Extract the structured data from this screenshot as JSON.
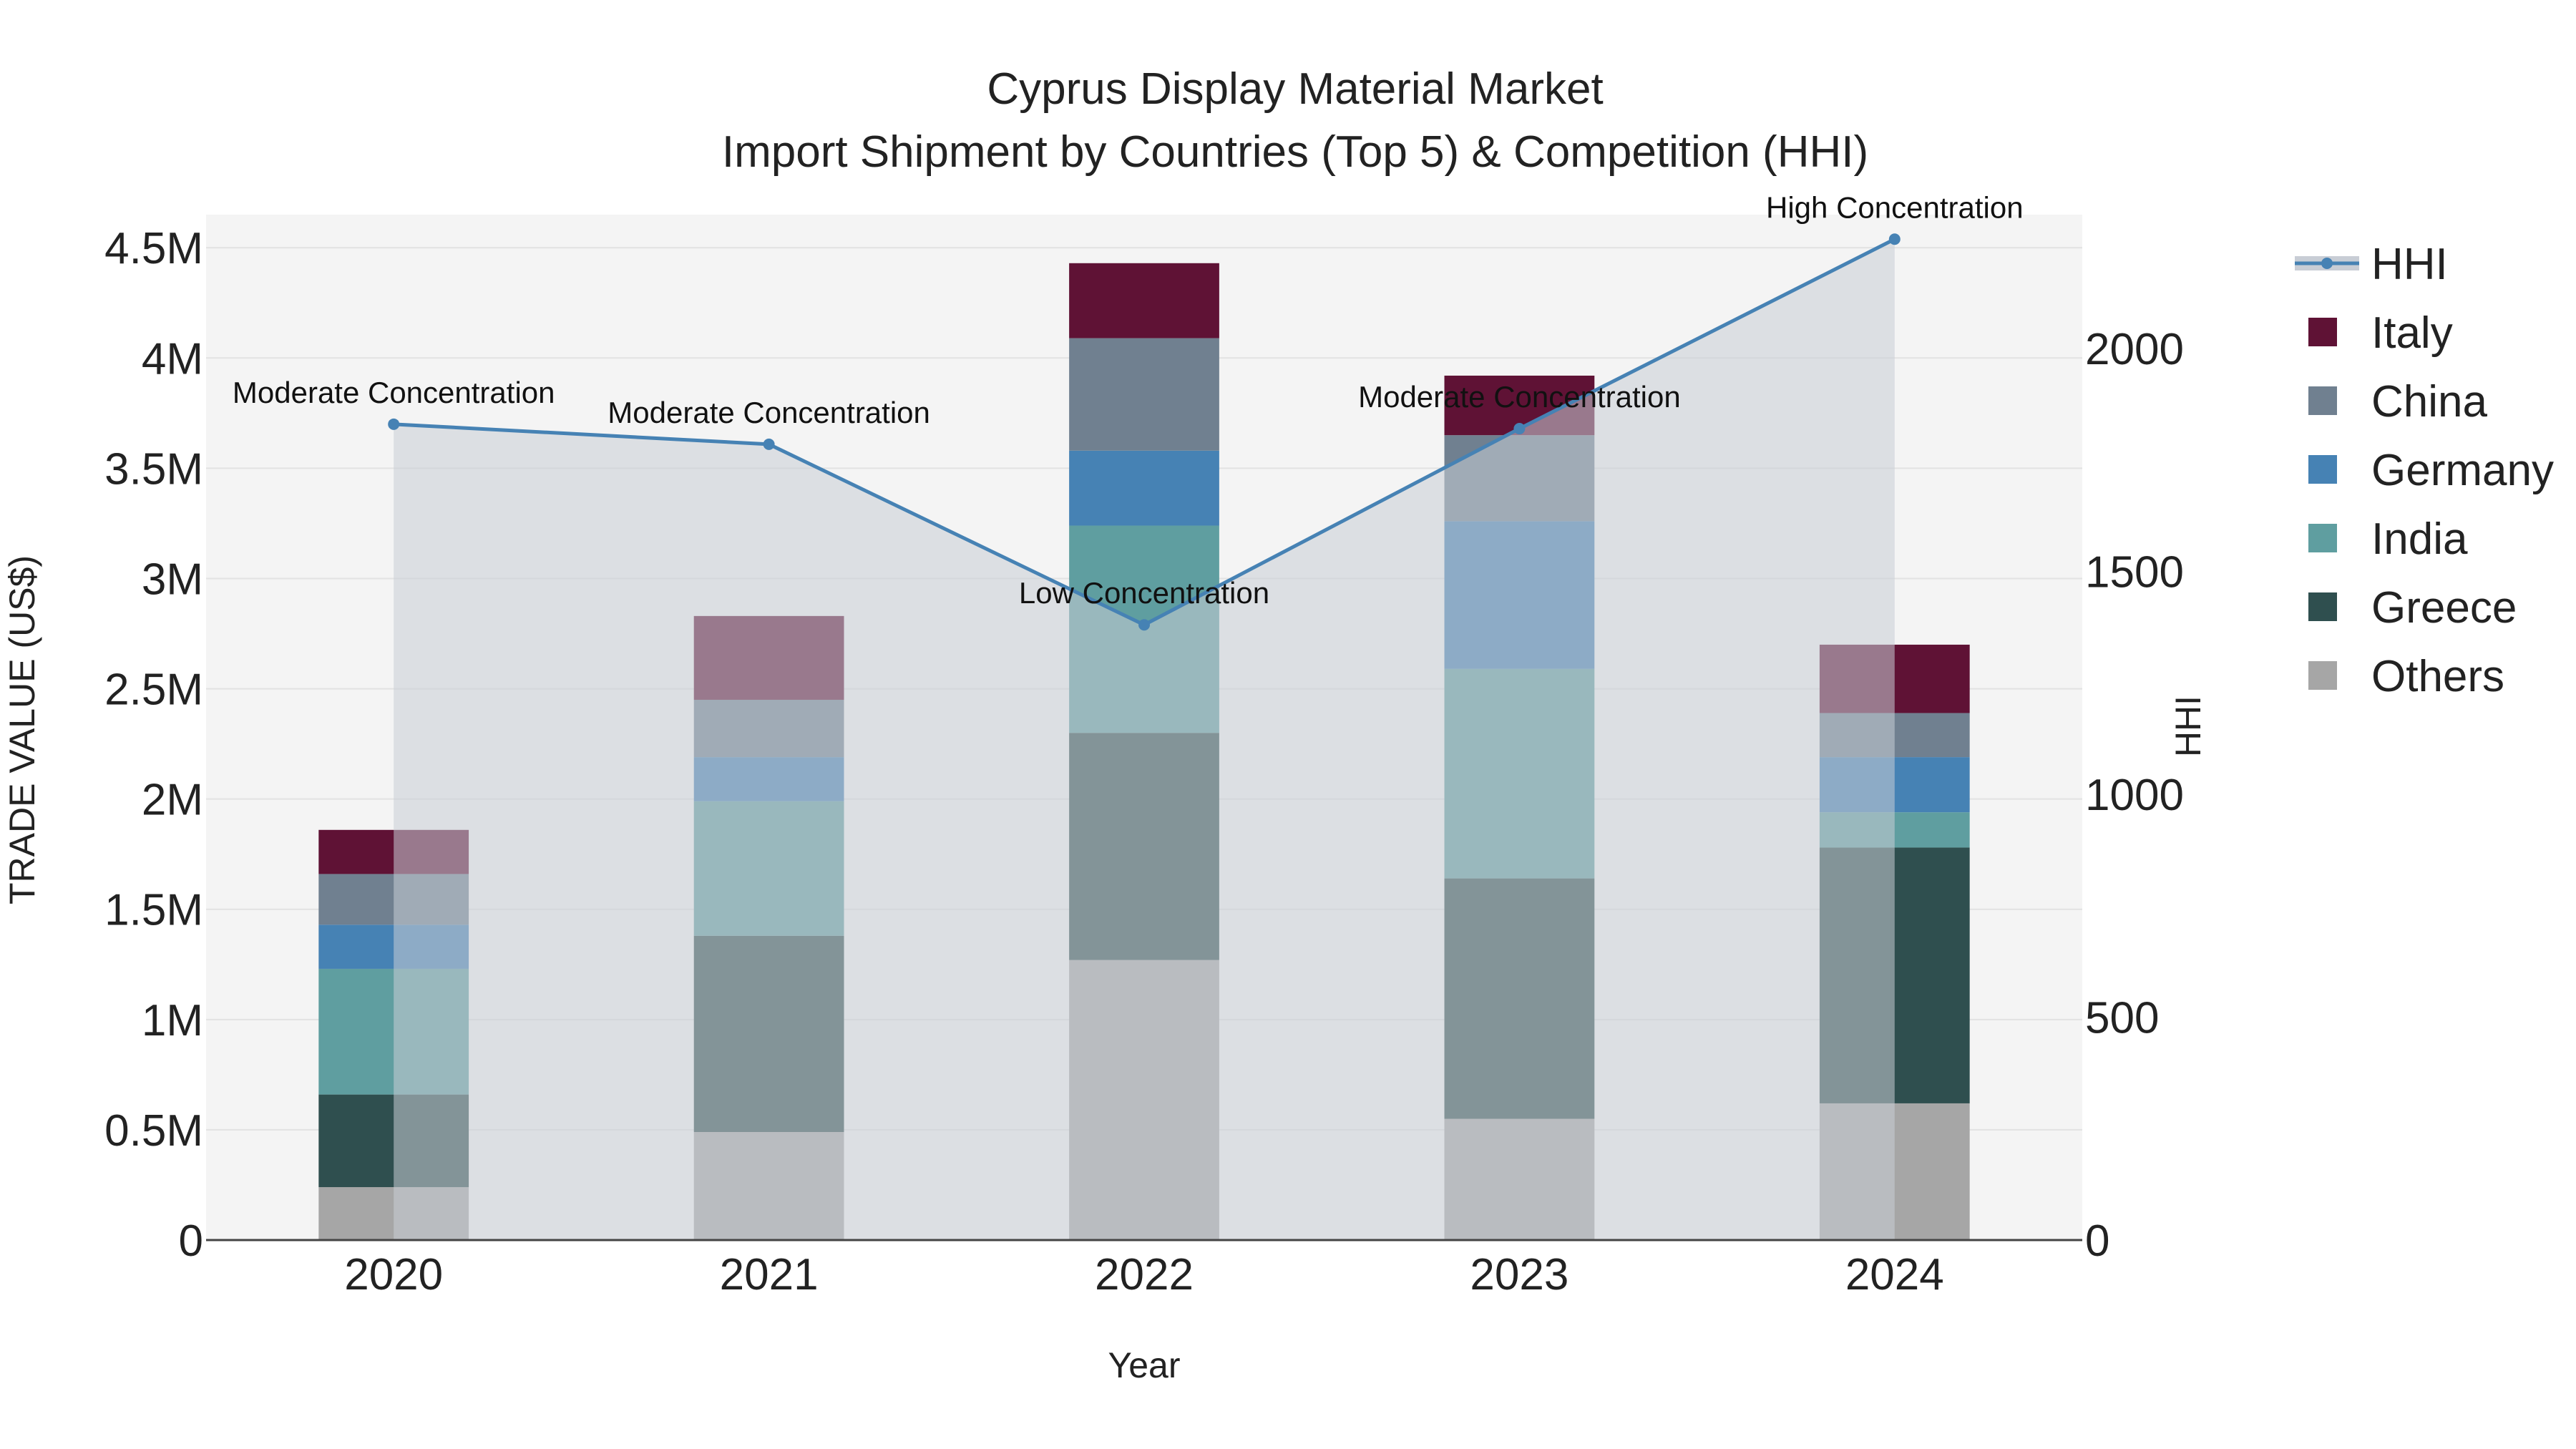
{
  "chart_data": {
    "type": "bar",
    "title": "Cyprus Display Material Market",
    "subtitle": "Import Shipment by Countries (Top 5) & Competition (HHI)",
    "xlabel": "Year",
    "ylabel": "TRADE VALUE (US$)",
    "y2label": "HHI",
    "categories": [
      "2020",
      "2021",
      "2022",
      "2023",
      "2024"
    ],
    "ylim": [
      0,
      4650000
    ],
    "y2lim": [
      0,
      2300
    ],
    "yticks": [
      {
        "value": 0,
        "label": "0"
      },
      {
        "value": 500000,
        "label": "0.5M"
      },
      {
        "value": 1000000,
        "label": "1M"
      },
      {
        "value": 1500000,
        "label": "1.5M"
      },
      {
        "value": 2000000,
        "label": "2M"
      },
      {
        "value": 2500000,
        "label": "2.5M"
      },
      {
        "value": 3000000,
        "label": "3M"
      },
      {
        "value": 3500000,
        "label": "3.5M"
      },
      {
        "value": 4000000,
        "label": "4M"
      },
      {
        "value": 4500000,
        "label": "4.5M"
      }
    ],
    "y2ticks": [
      {
        "value": 0,
        "label": "0"
      },
      {
        "value": 500,
        "label": "500"
      },
      {
        "value": 1000,
        "label": "1000"
      },
      {
        "value": 1500,
        "label": "1500"
      },
      {
        "value": 2000,
        "label": "2000"
      }
    ],
    "series": [
      {
        "name": "Others",
        "color": "#a6a6a6",
        "values": [
          240000,
          490000,
          1270000,
          550000,
          620000
        ]
      },
      {
        "name": "Greece",
        "color": "#2f4f4f",
        "values": [
          420000,
          890000,
          1030000,
          1090000,
          1160000
        ]
      },
      {
        "name": "India",
        "color": "#5f9ea0",
        "values": [
          570000,
          610000,
          940000,
          950000,
          160000
        ]
      },
      {
        "name": "Germany",
        "color": "#4682b4",
        "values": [
          200000,
          200000,
          340000,
          670000,
          250000
        ]
      },
      {
        "name": "China",
        "color": "#708090",
        "values": [
          230000,
          260000,
          510000,
          390000,
          200000
        ]
      },
      {
        "name": "Italy",
        "color": "#5f1235",
        "values": [
          200000,
          380000,
          340000,
          270000,
          310000
        ]
      }
    ],
    "hhi": {
      "name": "HHI",
      "color": "#4682b4",
      "area_color": "#c8cdd5",
      "values": [
        1830,
        1785,
        1380,
        1820,
        2245
      ],
      "annotations": [
        "Moderate Concentration",
        "Moderate Concentration",
        "Low Concentration",
        "Moderate Concentration",
        "High Concentration"
      ]
    },
    "legend": [
      "HHI",
      "Italy",
      "China",
      "Germany",
      "India",
      "Greece",
      "Others"
    ],
    "legend_position": "right"
  }
}
